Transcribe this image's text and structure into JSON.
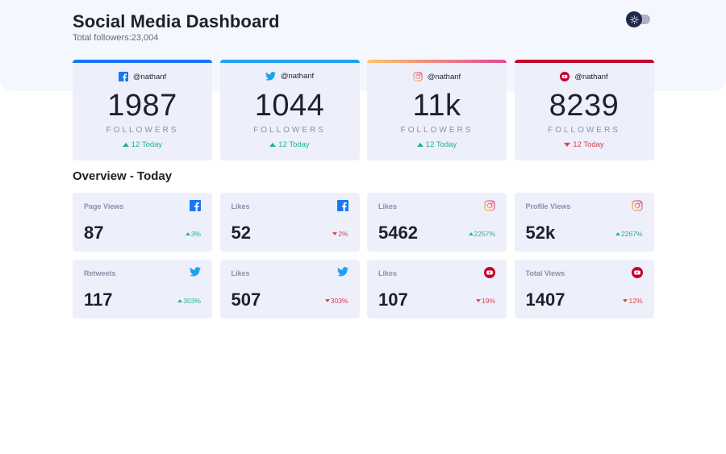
{
  "header": {
    "title": "Social Media Dashboard",
    "subtitle": "Total followers:23,004",
    "toggle_state": "dark-mode-off"
  },
  "follower_cards": [
    {
      "platform": "facebook",
      "icon": "facebook-icon",
      "handle": "@nathanf",
      "count": "1987",
      "label": "FOLLOWERS",
      "change": "12 Today",
      "trend": "up"
    },
    {
      "platform": "twitter",
      "icon": "twitter-icon",
      "handle": "@nathanf",
      "count": "1044",
      "label": "FOLLOWERS",
      "change": "12 Today",
      "trend": "up"
    },
    {
      "platform": "instagram",
      "icon": "instagram-icon",
      "handle": "@nathanf",
      "count": "11k",
      "label": "FOLLOWERS",
      "change": "12 Today",
      "trend": "up"
    },
    {
      "platform": "youtube",
      "icon": "youtube-icon",
      "handle": "@nathanf",
      "count": "8239",
      "label": "FOLLOWERS",
      "change": "12 Today",
      "trend": "down"
    }
  ],
  "overview": {
    "title": "Overview - Today",
    "cards": [
      {
        "label": "Page Views",
        "icon": "facebook-icon",
        "value": "87",
        "change": "3%",
        "trend": "up"
      },
      {
        "label": "Likes",
        "icon": "facebook-icon",
        "value": "52",
        "change": "2%",
        "trend": "down"
      },
      {
        "label": "Likes",
        "icon": "instagram-icon",
        "value": "5462",
        "change": "2257%",
        "trend": "up"
      },
      {
        "label": "Profile Views",
        "icon": "instagram-icon",
        "value": "52k",
        "change": "2267%",
        "trend": "up"
      },
      {
        "label": "Retweets",
        "icon": "twitter-icon",
        "value": "117",
        "change": "303%",
        "trend": "up"
      },
      {
        "label": "Likes",
        "icon": "twitter-icon",
        "value": "507",
        "change": "303%",
        "trend": "down"
      },
      {
        "label": "Likes",
        "icon": "youtube-icon",
        "value": "107",
        "change": "19%",
        "trend": "down"
      },
      {
        "label": "Total Views",
        "icon": "youtube-icon",
        "value": "1407",
        "change": "12%",
        "trend": "down"
      }
    ]
  },
  "colors": {
    "facebook": "#1778f2",
    "twitter": "#1da1f2",
    "instagram_start": "#fdc468",
    "instagram_end": "#df4996",
    "youtube": "#c4032b",
    "up": "#1db489",
    "down": "#dc414c",
    "card_bg": "#edf0fa"
  }
}
